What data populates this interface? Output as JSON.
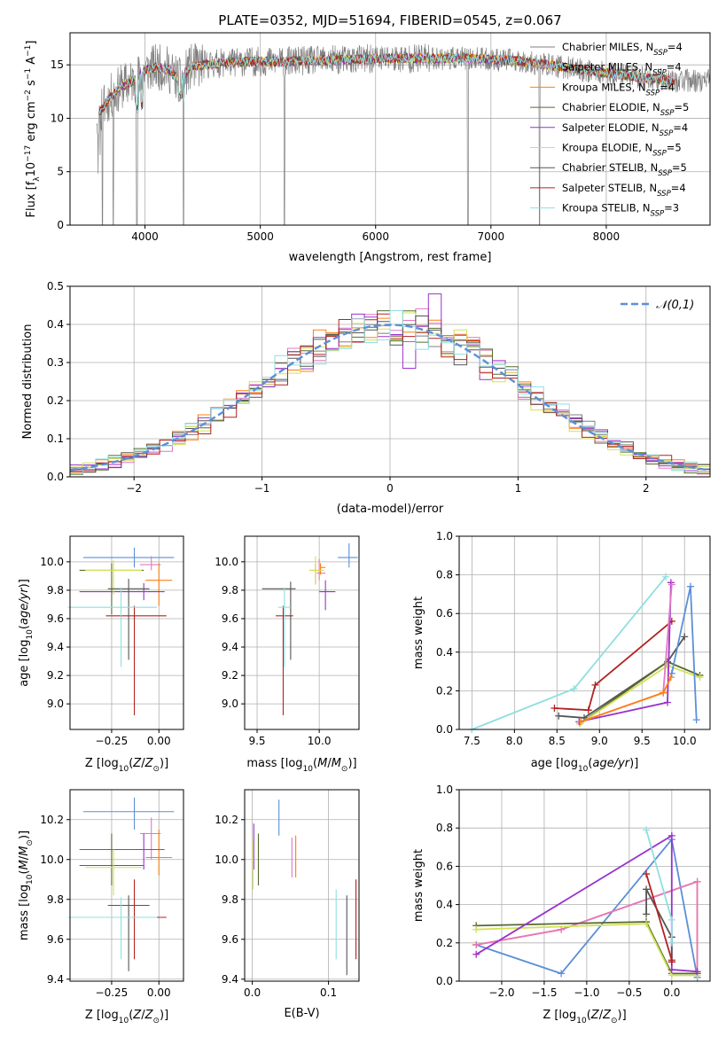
{
  "figure": {
    "title": "PLATE=0352, MJD=51694, FIBERID=0545, z=0.067"
  },
  "models": [
    {
      "label": "Chabrier MILES, N",
      "nssp": "4",
      "color": "#7f7f7f"
    },
    {
      "label": "Salpeter MILES, N",
      "nssp": "4",
      "color": "#e377c2"
    },
    {
      "label": "Kroupa MILES, N",
      "nssp": "4",
      "color": "#ff7f0e"
    },
    {
      "label": "Chabrier ELODIE, N",
      "nssp": "5",
      "color": "#556b2f"
    },
    {
      "label": "Salpeter ELODIE, N",
      "nssp": "4",
      "color": "#9932cc"
    },
    {
      "label": "Kroupa ELODIE, N",
      "nssp": "5",
      "color": "#d4e157"
    },
    {
      "label": "Chabrier STELIB, N",
      "nssp": "5",
      "color": "#555555"
    },
    {
      "label": "Salpeter STELIB, N",
      "nssp": "4",
      "color": "#b22222"
    },
    {
      "label": "Kroupa STELIB, N",
      "nssp": "3",
      "color": "#8fdfe0"
    }
  ],
  "chart_data": [
    {
      "id": "spectrum",
      "type": "line",
      "title": "PLATE=0352, MJD=51694, FIBERID=0545, z=0.067",
      "xlabel": "wavelength [Angstrom, rest frame]",
      "ylabel_parts": [
        "Flux [f",
        "λ",
        "10",
        "−17",
        " erg cm",
        "−2",
        " s",
        "−1",
        " A",
        "−1",
        "]"
      ],
      "xlim": [
        3350,
        8900
      ],
      "ylim": [
        0,
        18
      ],
      "xticks": [
        4000,
        5000,
        6000,
        7000,
        8000
      ],
      "yticks": [
        0,
        5,
        10,
        15
      ],
      "continuum_wavelength": [
        3600,
        3700,
        3800,
        3900,
        4000,
        4100,
        4200,
        4300,
        4400,
        4500,
        4700,
        4900,
        5200,
        5500,
        5800,
        6100,
        6500,
        6800,
        7200,
        7500,
        7800,
        8100,
        8400,
        8600
      ],
      "continuum_flux": [
        10.5,
        12.0,
        13.0,
        13.5,
        14.5,
        14.8,
        14.6,
        13.5,
        14.8,
        15.0,
        15.2,
        15.3,
        15.3,
        15.4,
        15.5,
        15.6,
        15.6,
        15.6,
        15.4,
        15.0,
        14.5,
        14.1,
        13.7,
        13.5
      ],
      "data_wavelength_range": [
        3580,
        8900
      ],
      "model_wavelength_range": [
        3600,
        8600
      ],
      "absorption_dips": [
        3630,
        3725,
        3930,
        4335,
        5210,
        6800,
        7420
      ]
    },
    {
      "id": "residuals",
      "type": "step",
      "xlabel": "(data-model)/error",
      "ylabel": "Normed distribution",
      "xlim": [
        -2.5,
        2.5
      ],
      "ylim": [
        0,
        0.5
      ],
      "xticks": [
        -2,
        -1,
        0,
        1,
        2
      ],
      "xtick_labels": [
        "−2",
        "−1",
        "0",
        "1",
        "2"
      ],
      "yticks": [
        0.0,
        0.1,
        0.2,
        0.3,
        0.4,
        0.5
      ],
      "ytick_labels": [
        "0.0",
        "0.1",
        "0.2",
        "0.3",
        "0.4",
        "0.5"
      ],
      "bin_width": 0.1,
      "gaussian_label": "𝒩(0,1)",
      "gaussian_color": "#5b8fd8"
    },
    {
      "id": "age-vs-Z",
      "type": "errorbar",
      "xlabel": "Z [log10(Z/Z⊙)]",
      "ylabel": "age [log10(age/yr)]",
      "xlim": [
        -0.47,
        0.13
      ],
      "ylim": [
        8.82,
        10.18
      ],
      "xticks": [
        -0.25,
        0.0
      ],
      "xtick_labels": [
        "−0.25",
        "0.00"
      ],
      "yticks": [
        9.0,
        9.2,
        9.4,
        9.6,
        9.8,
        10.0
      ],
      "ytick_labels": [
        "9.0",
        "9.2",
        "9.4",
        "9.6",
        "9.8",
        "10.0"
      ],
      "points": [
        {
          "x": -0.13,
          "y": 10.03,
          "xerr": [
            0.27,
            0.21
          ],
          "yerr": [
            0.07,
            0.07
          ],
          "color": "#5b8fd8"
        },
        {
          "x": -0.04,
          "y": 9.98,
          "xerr": [
            0.06,
            0.05
          ],
          "yerr": [
            0.04,
            0.06
          ],
          "color": "#e377c2"
        },
        {
          "x": 0.0,
          "y": 9.87,
          "xerr": [
            0.07,
            0.07
          ],
          "yerr": [
            0.18,
            0.12
          ],
          "color": "#ff7f0e"
        },
        {
          "x": -0.25,
          "y": 9.94,
          "xerr": [
            0.17,
            0.17
          ],
          "yerr": [
            0.31,
            0.05
          ],
          "color": "#556b2f"
        },
        {
          "x": -0.08,
          "y": 9.79,
          "xerr": [
            0.34,
            0.11
          ],
          "yerr": [
            0.06,
            0.06
          ],
          "color": "#9932cc"
        },
        {
          "x": -0.24,
          "y": 9.94,
          "xerr": [
            0.15,
            0.15
          ],
          "yerr": [
            0.17,
            0.07
          ],
          "color": "#d4e157"
        },
        {
          "x": -0.16,
          "y": 9.81,
          "xerr": [
            0.11,
            0.11
          ],
          "yerr": [
            0.5,
            0.07
          ],
          "color": "#555555"
        },
        {
          "x": -0.13,
          "y": 9.62,
          "xerr": [
            0.15,
            0.17
          ],
          "yerr": [
            0.7,
            0.07
          ],
          "color": "#b22222"
        },
        {
          "x": -0.2,
          "y": 9.68,
          "xerr": [
            0.28,
            0.19
          ],
          "yerr": [
            0.42,
            0.14
          ],
          "color": "#8fdfe0"
        }
      ]
    },
    {
      "id": "age-vs-mass",
      "type": "errorbar",
      "xlabel": "mass [log10(M/M⊙)]",
      "ylabel": "",
      "xlim": [
        9.4,
        10.32
      ],
      "ylim": [
        8.82,
        10.18
      ],
      "xticks": [
        9.5,
        10.0
      ],
      "xtick_labels": [
        "9.5",
        "10.0"
      ],
      "yticks": [
        9.0,
        9.2,
        9.4,
        9.6,
        9.8,
        10.0
      ],
      "ytick_labels": [
        "9.0",
        "9.2",
        "9.4",
        "9.6",
        "9.8",
        "10.0"
      ],
      "points": [
        {
          "x": 10.24,
          "y": 10.03,
          "xerr": [
            0.09,
            0.07
          ],
          "yerr": [
            0.07,
            0.1
          ],
          "color": "#5b8fd8"
        },
        {
          "x": 10.0,
          "y": 9.92,
          "xerr": [
            0.02,
            0.05
          ],
          "yerr": [
            0.05,
            0.1
          ],
          "color": "#e377c2"
        },
        {
          "x": 10.01,
          "y": 9.96,
          "xerr": [
            0.0,
            0.04
          ],
          "yerr": [
            0.05,
            0.03
          ],
          "color": "#ff7f0e"
        },
        {
          "x": 9.97,
          "y": 9.94,
          "xerr": [
            0.05,
            0.05
          ],
          "yerr": [
            0.1,
            0.05
          ],
          "color": "#556b2f"
        },
        {
          "x": 10.05,
          "y": 9.79,
          "xerr": [
            0.05,
            0.08
          ],
          "yerr": [
            0.13,
            0.08
          ],
          "color": "#9932cc"
        },
        {
          "x": 9.97,
          "y": 9.94,
          "xerr": [
            0.05,
            0.07
          ],
          "yerr": [
            0.1,
            0.1
          ],
          "color": "#d4e157"
        },
        {
          "x": 9.77,
          "y": 9.81,
          "xerr": [
            0.23,
            0.04
          ],
          "yerr": [
            0.5,
            0.05
          ],
          "color": "#555555"
        },
        {
          "x": 9.71,
          "y": 9.62,
          "xerr": [
            0.06,
            0.08
          ],
          "yerr": [
            0.7,
            0.07
          ],
          "color": "#b22222"
        },
        {
          "x": 9.72,
          "y": 9.68,
          "xerr": [
            0.05,
            0.05
          ],
          "yerr": [
            0.42,
            0.14
          ],
          "color": "#8fdfe0"
        }
      ]
    },
    {
      "id": "weight-vs-age",
      "type": "line",
      "xlabel": "age [log10(age/yr)]",
      "ylabel": "mass weight",
      "xlim": [
        7.35,
        10.3
      ],
      "ylim": [
        0,
        1
      ],
      "xticks": [
        7.5,
        8.0,
        8.5,
        9.0,
        9.5,
        10.0
      ],
      "xtick_labels": [
        "7.5",
        "8.0",
        "8.5",
        "9.0",
        "9.5",
        "10.0"
      ],
      "yticks": [
        0.0,
        0.2,
        0.4,
        0.6,
        0.8,
        1.0
      ],
      "ytick_labels": [
        "0.0",
        "0.2",
        "0.4",
        "0.6",
        "0.8",
        "1.0"
      ],
      "series": [
        {
          "color": "#8fdfe0",
          "x": [
            7.5,
            8.7,
            9.78
          ],
          "y": [
            0.0,
            0.21,
            0.79
          ]
        },
        {
          "color": "#b22222",
          "x": [
            8.47,
            8.87,
            8.95,
            9.85
          ],
          "y": [
            0.11,
            0.1,
            0.23,
            0.56
          ]
        },
        {
          "color": "#555555",
          "x": [
            8.52,
            8.82,
            9.8,
            10.0
          ],
          "y": [
            0.07,
            0.06,
            0.35,
            0.48
          ]
        },
        {
          "color": "#556b2f",
          "x": [
            8.77,
            9.8,
            10.18
          ],
          "y": [
            0.03,
            0.35,
            0.28
          ]
        },
        {
          "color": "#d4e157",
          "x": [
            8.77,
            9.8,
            10.18
          ],
          "y": [
            0.03,
            0.33,
            0.27
          ]
        },
        {
          "color": "#9932cc",
          "x": [
            8.76,
            9.8,
            9.84
          ],
          "y": [
            0.04,
            0.14,
            0.76
          ]
        },
        {
          "color": "#e377c2",
          "x": [
            8.78,
            9.75,
            9.85
          ],
          "y": [
            0.04,
            0.19,
            0.75
          ]
        },
        {
          "color": "#ff7f0e",
          "x": [
            8.78,
            9.75,
            9.84
          ],
          "y": [
            0.04,
            0.19,
            0.27
          ]
        },
        {
          "color": "#5b8fd8",
          "x": [
            9.85,
            10.07,
            10.14
          ],
          "y": [
            0.29,
            0.74,
            0.05
          ]
        }
      ]
    },
    {
      "id": "mass-vs-Z",
      "type": "errorbar",
      "xlabel": "Z [log10(Z/Z⊙)]",
      "ylabel": "mass [log10(M/M⊙)]",
      "xlim": [
        -0.47,
        0.13
      ],
      "ylim": [
        9.39,
        10.35
      ],
      "xticks": [
        -0.25,
        0.0
      ],
      "xtick_labels": [
        "−0.25",
        "0.00"
      ],
      "yticks": [
        9.4,
        9.6,
        9.8,
        10.0,
        10.2
      ],
      "ytick_labels": [
        "9.4",
        "9.6",
        "9.8",
        "10.0",
        "10.2"
      ],
      "points": [
        {
          "x": -0.13,
          "y": 10.24,
          "xerr": [
            0.27,
            0.21
          ],
          "yerr": [
            0.09,
            0.07
          ],
          "color": "#5b8fd8"
        },
        {
          "x": -0.04,
          "y": 10.13,
          "xerr": [
            0.06,
            0.05
          ],
          "yerr": [
            0.13,
            0.08
          ],
          "color": "#e377c2"
        },
        {
          "x": 0.0,
          "y": 10.01,
          "xerr": [
            0.07,
            0.07
          ],
          "yerr": [
            0.09,
            0.14
          ],
          "color": "#ff7f0e"
        },
        {
          "x": -0.25,
          "y": 9.97,
          "xerr": [
            0.17,
            0.17
          ],
          "yerr": [
            0.1,
            0.16
          ],
          "color": "#556b2f"
        },
        {
          "x": -0.08,
          "y": 10.05,
          "xerr": [
            0.34,
            0.11
          ],
          "yerr": [
            0.1,
            0.08
          ],
          "color": "#9932cc"
        },
        {
          "x": -0.24,
          "y": 9.96,
          "xerr": [
            0.15,
            0.15
          ],
          "yerr": [
            0.14,
            0.09
          ],
          "color": "#d4e157"
        },
        {
          "x": -0.16,
          "y": 9.77,
          "xerr": [
            0.11,
            0.11
          ],
          "yerr": [
            0.33,
            0.05
          ],
          "color": "#555555"
        },
        {
          "x": -0.13,
          "y": 9.71,
          "xerr": [
            0.15,
            0.17
          ],
          "yerr": [
            0.21,
            0.19
          ],
          "color": "#b22222"
        },
        {
          "x": -0.2,
          "y": 9.71,
          "xerr": [
            0.28,
            0.19
          ],
          "yerr": [
            0.21,
            0.1
          ],
          "color": "#8fdfe0"
        }
      ]
    },
    {
      "id": "mass-vs-EBV",
      "type": "errorbar",
      "xlabel": "E(B-V)",
      "ylabel": "",
      "xlim": [
        -0.01,
        0.14
      ],
      "ylim": [
        9.39,
        10.35
      ],
      "xticks": [
        0.0,
        0.1
      ],
      "xtick_labels": [
        "0.0",
        "0.1"
      ],
      "yticks": [
        9.4,
        9.6,
        9.8,
        10.0,
        10.2
      ],
      "ytick_labels": [
        "9.4",
        "9.6",
        "9.8",
        "10.0",
        "10.2"
      ],
      "points": [
        {
          "x": 0.035,
          "y": 10.18,
          "xerr": [
            0,
            0
          ],
          "yerr": [
            0.06,
            0.12
          ],
          "color": "#5b8fd8"
        },
        {
          "x": 0.052,
          "y": 10.01,
          "xerr": [
            0,
            0
          ],
          "yerr": [
            0.1,
            0.1
          ],
          "color": "#e377c2"
        },
        {
          "x": 0.057,
          "y": 10.01,
          "xerr": [
            0,
            0
          ],
          "yerr": [
            0.1,
            0.11
          ],
          "color": "#ff7f0e"
        },
        {
          "x": 0.008,
          "y": 10.0,
          "xerr": [
            0,
            0
          ],
          "yerr": [
            0.13,
            0.13
          ],
          "color": "#556b2f"
        },
        {
          "x": 0.002,
          "y": 10.05,
          "xerr": [
            0,
            0
          ],
          "yerr": [
            0.1,
            0.13
          ],
          "color": "#9932cc"
        },
        {
          "x": 0.001,
          "y": 10.0,
          "xerr": [
            0,
            0
          ],
          "yerr": [
            0.15,
            0.1
          ],
          "color": "#d4e157"
        },
        {
          "x": 0.124,
          "y": 9.57,
          "xerr": [
            0,
            0
          ],
          "yerr": [
            0.15,
            0.25
          ],
          "color": "#555555"
        },
        {
          "x": 0.136,
          "y": 9.7,
          "xerr": [
            0,
            0
          ],
          "yerr": [
            0.2,
            0.2
          ],
          "color": "#b22222"
        },
        {
          "x": 0.11,
          "y": 9.67,
          "xerr": [
            0,
            0
          ],
          "yerr": [
            0.17,
            0.18
          ],
          "color": "#8fdfe0"
        }
      ]
    },
    {
      "id": "weight-vs-Z",
      "type": "line",
      "xlabel": "Z [log10(Z/Z⊙)]",
      "ylabel": "mass weight",
      "xlim": [
        -2.5,
        0.45
      ],
      "ylim": [
        0,
        1
      ],
      "xticks": [
        -2.0,
        -1.5,
        -1.0,
        -0.5,
        0.0
      ],
      "xtick_labels": [
        "−2.0",
        "−1.5",
        "−1.0",
        "−0.5",
        "0.0"
      ],
      "yticks": [
        0.0,
        0.2,
        0.4,
        0.6,
        0.8,
        1.0
      ],
      "ytick_labels": [
        "0.0",
        "0.2",
        "0.4",
        "0.6",
        "0.8",
        "1.0"
      ],
      "series": [
        {
          "color": "#5b8fd8",
          "x": [
            -2.3,
            -1.3,
            0.0,
            0.3
          ],
          "y": [
            0.19,
            0.04,
            0.74,
            0.02
          ]
        },
        {
          "color": "#ff7f0e",
          "x": [
            -2.3,
            -1.3,
            0.3,
            0.3
          ],
          "y": [
            0.19,
            0.27,
            0.52,
            0.04
          ]
        },
        {
          "color": "#e377c2",
          "x": [
            -2.3,
            -1.3,
            0.3,
            0.3
          ],
          "y": [
            0.19,
            0.27,
            0.52,
            0.04
          ]
        },
        {
          "color": "#556b2f",
          "x": [
            -2.3,
            -0.3,
            0.0,
            0.3
          ],
          "y": [
            0.29,
            0.31,
            0.04,
            0.04
          ]
        },
        {
          "color": "#d4e157",
          "x": [
            -2.3,
            -0.3,
            0.0,
            0.3
          ],
          "y": [
            0.27,
            0.3,
            0.03,
            0.03
          ]
        },
        {
          "color": "#9932cc",
          "x": [
            -2.3,
            0.0,
            0.0,
            0.3
          ],
          "y": [
            0.14,
            0.76,
            0.06,
            0.05
          ]
        },
        {
          "color": "#555555",
          "x": [
            -0.3,
            -0.3,
            0.0,
            0.0
          ],
          "y": [
            0.35,
            0.48,
            0.23,
            0.1
          ]
        },
        {
          "color": "#b22222",
          "x": [
            -0.3,
            0.0,
            0.0,
            0.0
          ],
          "y": [
            0.56,
            0.11,
            0.1,
            0.1
          ]
        },
        {
          "color": "#8fdfe0",
          "x": [
            -0.3,
            0.0,
            0.0
          ],
          "y": [
            0.79,
            0.32,
            0.2
          ]
        }
      ]
    }
  ]
}
